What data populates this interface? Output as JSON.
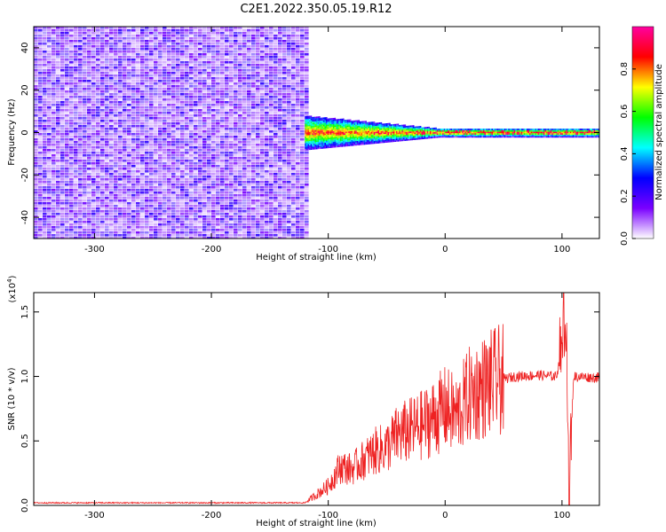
{
  "title": "C2E1.2022.350.05.19.R12",
  "chart_data": [
    {
      "type": "heatmap",
      "xlabel": "Height of straight line (km)",
      "ylabel": "Frequency (Hz)",
      "xlim": [
        -352,
        132
      ],
      "ylim": [
        -50,
        50
      ],
      "xticks": [
        -300,
        -200,
        -100,
        0,
        100
      ],
      "yticks": [
        -40,
        -20,
        0,
        20,
        40
      ],
      "x_tick_labels": [
        "-300",
        "-200",
        "-100",
        "0",
        "100"
      ],
      "y_tick_labels": [
        "-40",
        "-20",
        "0",
        "20",
        "40"
      ],
      "noise_region_x": [
        -352,
        -120
      ],
      "signal_band": {
        "x_start": -120,
        "x_end": 132,
        "center_hz": 0,
        "halfwidth_hz": [
          8,
          2
        ]
      },
      "colorbar": {
        "label": "Normalized spectral amplitude",
        "range": [
          0,
          1
        ],
        "ticks": [
          0.0,
          0.2,
          0.4,
          0.6,
          0.8
        ],
        "tick_labels": [
          "0.0",
          "0.2",
          "0.4",
          "0.6",
          "0.8"
        ],
        "colors": [
          "#ffffff",
          "#7a00ff",
          "#0000ff",
          "#00ffff",
          "#00ff00",
          "#ffff00",
          "#ff0000",
          "#ff00a0"
        ]
      }
    },
    {
      "type": "line",
      "xlabel": "Height of straight line (km)",
      "ylabel": "SNR (10 * v/v)",
      "y_scale_label": "(x10",
      "y_scale_exp": "4",
      "y_scale_close": ")",
      "xlim": [
        -352,
        132
      ],
      "ylim": [
        0,
        1.65
      ],
      "xticks": [
        -300,
        -200,
        -100,
        0,
        100
      ],
      "yticks": [
        0.0,
        0.5,
        1.0,
        1.5
      ],
      "x_tick_labels": [
        "-300",
        "-200",
        "-100",
        "0",
        "100"
      ],
      "y_tick_labels": [
        "0.0",
        "0.5",
        "1.0",
        "1.5"
      ],
      "color": "#ee2222",
      "profile": [
        [
          -352,
          0.02
        ],
        [
          -120,
          0.02
        ],
        [
          -100,
          0.15
        ],
        [
          -90,
          0.3
        ],
        [
          -80,
          0.28
        ],
        [
          -70,
          0.35
        ],
        [
          -60,
          0.42
        ],
        [
          -50,
          0.45
        ],
        [
          -40,
          0.55
        ],
        [
          -30,
          0.58
        ],
        [
          -20,
          0.62
        ],
        [
          -10,
          0.68
        ],
        [
          0,
          0.75
        ],
        [
          10,
          0.7
        ],
        [
          20,
          0.85
        ],
        [
          30,
          0.9
        ],
        [
          40,
          0.95
        ],
        [
          50,
          0.98
        ],
        [
          60,
          1.0
        ],
        [
          80,
          1.01
        ],
        [
          95,
          1.0
        ],
        [
          100,
          1.2
        ],
        [
          103,
          1.55
        ],
        [
          106,
          0.2
        ],
        [
          110,
          1.0
        ],
        [
          132,
          0.99
        ]
      ]
    }
  ]
}
